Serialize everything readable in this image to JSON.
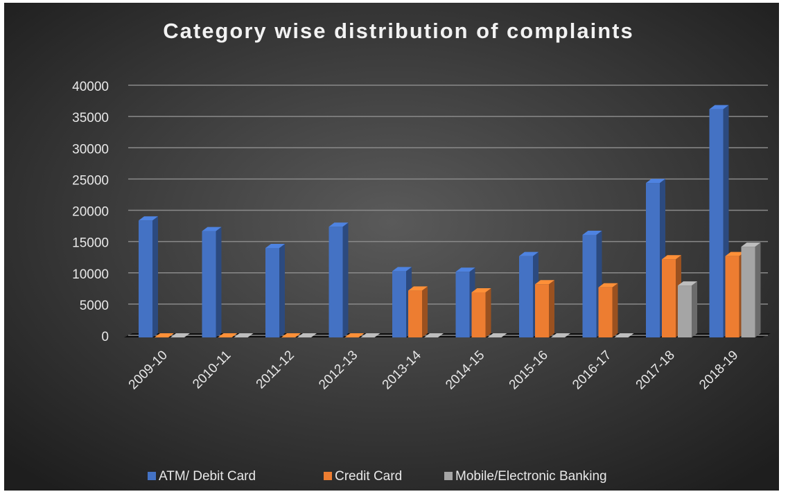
{
  "chart_data": {
    "type": "bar",
    "title": "Category wise distribution of complaints",
    "categories": [
      "2009-10",
      "2010-11",
      "2011-12",
      "2012-13",
      "2013-14",
      "2014-15",
      "2015-16",
      "2016-17",
      "2017-18",
      "2018-19"
    ],
    "series": [
      {
        "name": "ATM/ Debit Card",
        "color": "#4472c4",
        "values": [
          18700,
          17000,
          14300,
          17700,
          10600,
          10500,
          13000,
          16400,
          24700,
          36500
        ]
      },
      {
        "name": "Credit Card",
        "color": "#ed7d31",
        "values": [
          0,
          0,
          0,
          0,
          7500,
          7200,
          8500,
          8000,
          12500,
          13000
        ]
      },
      {
        "name": "Mobile/Electronic Banking",
        "color": "#a5a5a5",
        "values": [
          0,
          0,
          0,
          0,
          0,
          0,
          0,
          0,
          8300,
          14500
        ]
      }
    ],
    "ylim": [
      0,
      40000
    ],
    "yticks": [
      0,
      5000,
      10000,
      15000,
      20000,
      25000,
      30000,
      35000,
      40000
    ],
    "grid": true
  }
}
